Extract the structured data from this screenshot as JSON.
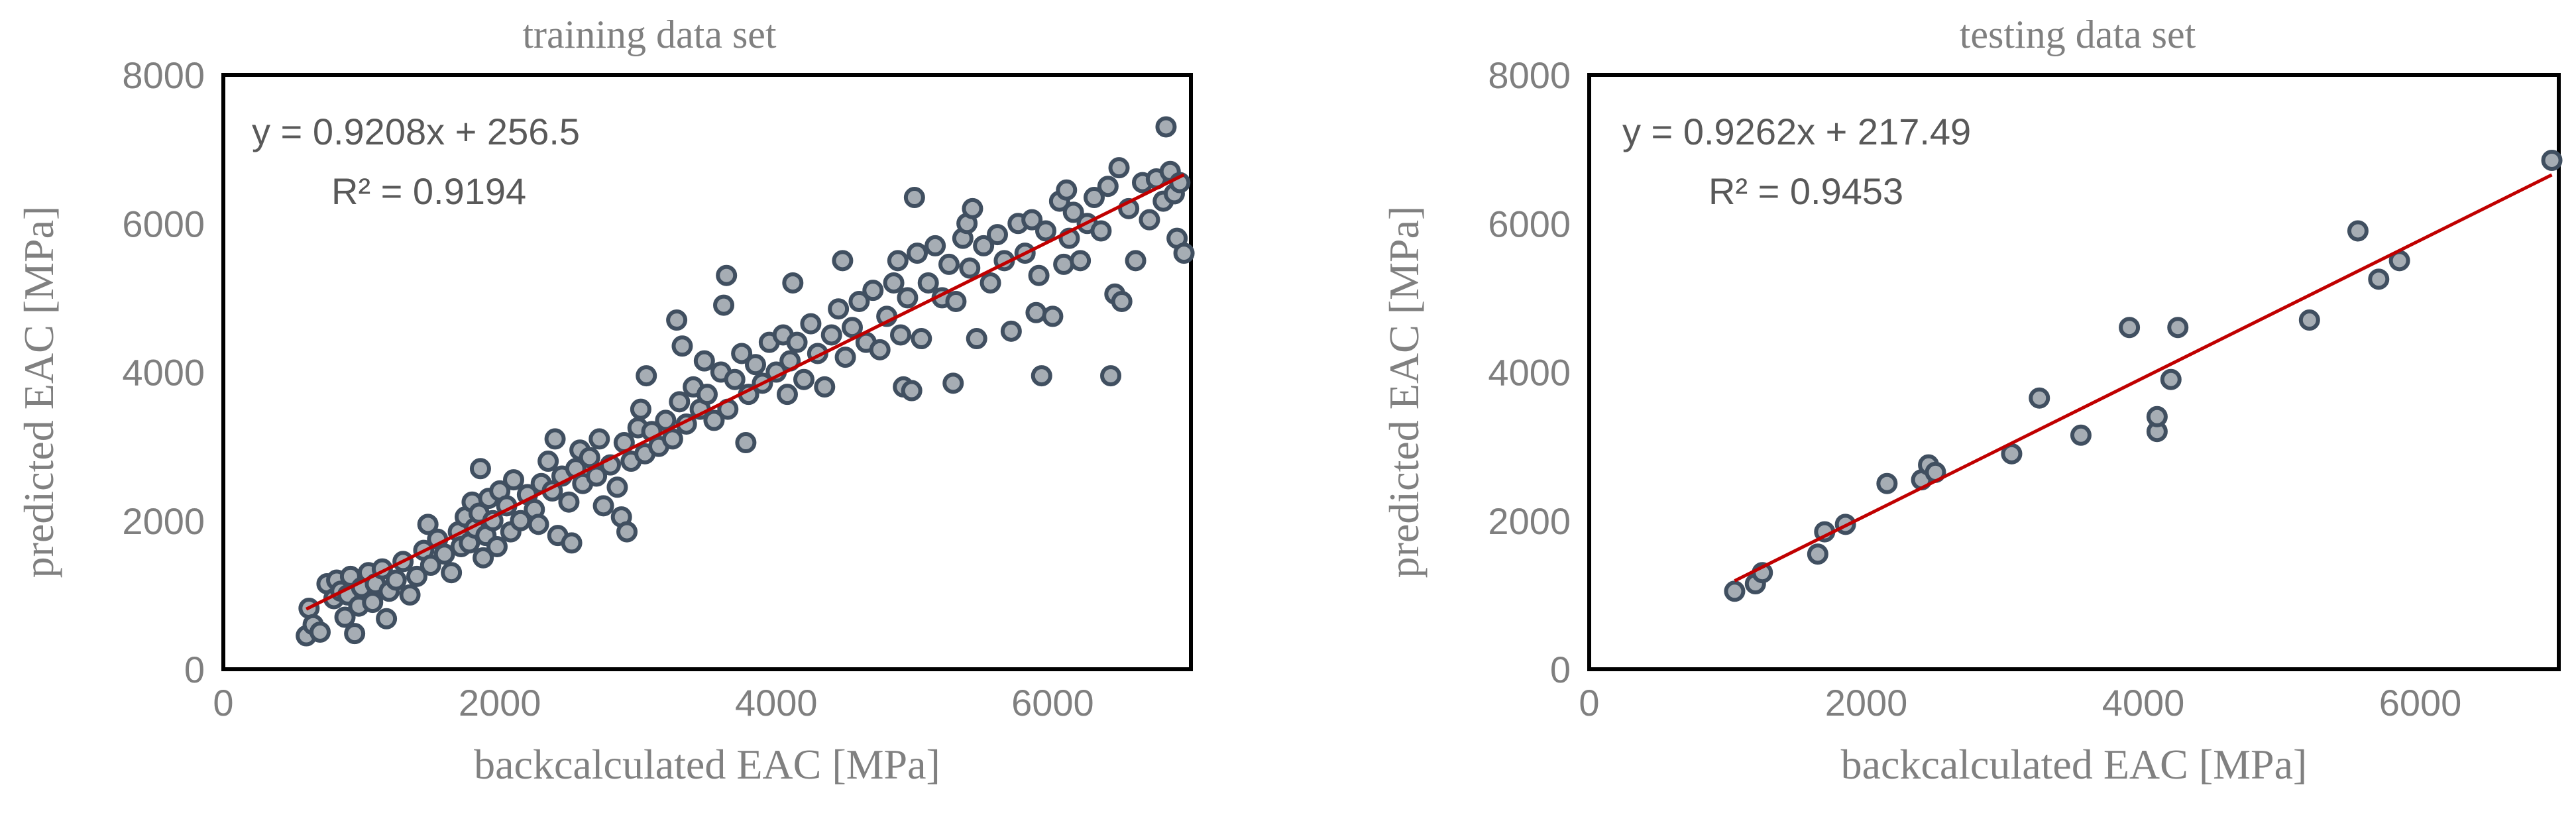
{
  "chart_data": [
    {
      "type": "scatter",
      "title": "training data set",
      "xlabel": "backcalculated EAC  [MPa]",
      "ylabel": "predicted EAC  [MPa]",
      "xlim": [
        0,
        7000
      ],
      "ylim": [
        0,
        8000
      ],
      "xticks": [
        "0",
        "2000",
        "4000",
        "6000"
      ],
      "yticks": [
        "0",
        "2000",
        "4000",
        "6000",
        "8000"
      ],
      "grid": false,
      "marker_color": "#404f60",
      "marker_fill": "#a6adb4",
      "trendline": {
        "slope": 0.9208,
        "intercept": 256.5,
        "x_range": [
          600,
          6950
        ],
        "color": "#c00000",
        "equation": "y = 0.9208x + 256.5",
        "r2": "R² = 0.9194"
      },
      "points": [
        [
          600,
          450
        ],
        [
          620,
          820
        ],
        [
          650,
          600
        ],
        [
          700,
          500
        ],
        [
          750,
          1150
        ],
        [
          800,
          950
        ],
        [
          820,
          1200
        ],
        [
          850,
          1050
        ],
        [
          880,
          700
        ],
        [
          900,
          1000
        ],
        [
          920,
          1250
        ],
        [
          950,
          480
        ],
        [
          980,
          850
        ],
        [
          1000,
          1100
        ],
        [
          1050,
          1300
        ],
        [
          1080,
          900
        ],
        [
          1100,
          1150
        ],
        [
          1150,
          1350
        ],
        [
          1180,
          680
        ],
        [
          1200,
          1050
        ],
        [
          1250,
          1200
        ],
        [
          1300,
          1450
        ],
        [
          1350,
          1000
        ],
        [
          1400,
          1250
        ],
        [
          1450,
          1600
        ],
        [
          1480,
          1950
        ],
        [
          1500,
          1400
        ],
        [
          1550,
          1750
        ],
        [
          1600,
          1550
        ],
        [
          1650,
          1300
        ],
        [
          1700,
          1850
        ],
        [
          1720,
          1650
        ],
        [
          1750,
          2050
        ],
        [
          1780,
          1700
        ],
        [
          1800,
          2250
        ],
        [
          1820,
          1900
        ],
        [
          1850,
          2100
        ],
        [
          1860,
          2700
        ],
        [
          1880,
          1500
        ],
        [
          1900,
          1800
        ],
        [
          1920,
          2300
        ],
        [
          1950,
          2000
        ],
        [
          1980,
          1650
        ],
        [
          2000,
          2400
        ],
        [
          2050,
          2200
        ],
        [
          2080,
          1850
        ],
        [
          2100,
          2550
        ],
        [
          2150,
          2000
        ],
        [
          2200,
          2350
        ],
        [
          2250,
          2150
        ],
        [
          2280,
          1950
        ],
        [
          2300,
          2500
        ],
        [
          2350,
          2800
        ],
        [
          2380,
          2400
        ],
        [
          2400,
          3100
        ],
        [
          2420,
          1800
        ],
        [
          2450,
          2600
        ],
        [
          2500,
          2250
        ],
        [
          2520,
          1700
        ],
        [
          2550,
          2700
        ],
        [
          2580,
          2950
        ],
        [
          2600,
          2500
        ],
        [
          2650,
          2850
        ],
        [
          2700,
          2600
        ],
        [
          2720,
          3100
        ],
        [
          2750,
          2200
        ],
        [
          2800,
          2750
        ],
        [
          2850,
          2450
        ],
        [
          2880,
          2050
        ],
        [
          2900,
          3050
        ],
        [
          2920,
          1850
        ],
        [
          2950,
          2800
        ],
        [
          3000,
          3250
        ],
        [
          3020,
          3500
        ],
        [
          3050,
          2900
        ],
        [
          3060,
          3950
        ],
        [
          3100,
          3200
        ],
        [
          3150,
          3000
        ],
        [
          3200,
          3350
        ],
        [
          3250,
          3100
        ],
        [
          3280,
          4700
        ],
        [
          3300,
          3600
        ],
        [
          3320,
          4350
        ],
        [
          3350,
          3300
        ],
        [
          3400,
          3800
        ],
        [
          3450,
          3500
        ],
        [
          3480,
          4150
        ],
        [
          3500,
          3700
        ],
        [
          3550,
          3350
        ],
        [
          3600,
          4000
        ],
        [
          3620,
          4900
        ],
        [
          3640,
          5300
        ],
        [
          3650,
          3500
        ],
        [
          3700,
          3900
        ],
        [
          3750,
          4250
        ],
        [
          3780,
          3050
        ],
        [
          3800,
          3700
        ],
        [
          3850,
          4100
        ],
        [
          3900,
          3850
        ],
        [
          3950,
          4400
        ],
        [
          4000,
          4000
        ],
        [
          4050,
          4500
        ],
        [
          4080,
          3700
        ],
        [
          4100,
          4150
        ],
        [
          4120,
          5200
        ],
        [
          4150,
          4400
        ],
        [
          4200,
          3900
        ],
        [
          4250,
          4650
        ],
        [
          4300,
          4250
        ],
        [
          4350,
          3800
        ],
        [
          4400,
          4500
        ],
        [
          4450,
          4850
        ],
        [
          4480,
          5500
        ],
        [
          4500,
          4200
        ],
        [
          4550,
          4600
        ],
        [
          4600,
          4950
        ],
        [
          4650,
          4400
        ],
        [
          4700,
          5100
        ],
        [
          4750,
          4300
        ],
        [
          4800,
          4750
        ],
        [
          4850,
          5200
        ],
        [
          4880,
          5500
        ],
        [
          4900,
          4500
        ],
        [
          4920,
          3800
        ],
        [
          4950,
          5000
        ],
        [
          4980,
          3750
        ],
        [
          5000,
          6350
        ],
        [
          5020,
          5600
        ],
        [
          5050,
          4450
        ],
        [
          5100,
          5200
        ],
        [
          5150,
          5700
        ],
        [
          5200,
          5000
        ],
        [
          5250,
          5450
        ],
        [
          5280,
          3850
        ],
        [
          5300,
          4950
        ],
        [
          5350,
          5800
        ],
        [
          5380,
          6000
        ],
        [
          5400,
          5400
        ],
        [
          5420,
          6200
        ],
        [
          5450,
          4450
        ],
        [
          5500,
          5700
        ],
        [
          5550,
          5200
        ],
        [
          5600,
          5850
        ],
        [
          5650,
          5500
        ],
        [
          5700,
          4550
        ],
        [
          5750,
          6000
        ],
        [
          5800,
          5600
        ],
        [
          5850,
          6050
        ],
        [
          5880,
          4800
        ],
        [
          5900,
          5300
        ],
        [
          5920,
          3950
        ],
        [
          5950,
          5900
        ],
        [
          6000,
          4750
        ],
        [
          6050,
          6300
        ],
        [
          6080,
          5450
        ],
        [
          6100,
          6450
        ],
        [
          6120,
          5800
        ],
        [
          6150,
          6150
        ],
        [
          6200,
          5500
        ],
        [
          6250,
          6000
        ],
        [
          6300,
          6350
        ],
        [
          6350,
          5900
        ],
        [
          6400,
          6500
        ],
        [
          6420,
          3950
        ],
        [
          6450,
          5050
        ],
        [
          6480,
          6750
        ],
        [
          6500,
          4950
        ],
        [
          6550,
          6200
        ],
        [
          6600,
          5500
        ],
        [
          6650,
          6550
        ],
        [
          6700,
          6050
        ],
        [
          6750,
          6600
        ],
        [
          6800,
          6300
        ],
        [
          6820,
          7300
        ],
        [
          6850,
          6700
        ],
        [
          6880,
          6400
        ],
        [
          6900,
          5800
        ],
        [
          6920,
          6550
        ],
        [
          6950,
          5600
        ]
      ]
    },
    {
      "type": "scatter",
      "title": "testing data set",
      "xlabel": "backcalculated EAC  [MPa]",
      "ylabel": "predicted EAC  [MPa]",
      "xlim": [
        0,
        7000
      ],
      "ylim": [
        0,
        8000
      ],
      "xticks": [
        "0",
        "2000",
        "4000",
        "6000"
      ],
      "yticks": [
        "0",
        "2000",
        "4000",
        "6000",
        "8000"
      ],
      "grid": false,
      "marker_color": "#404f60",
      "marker_fill": "#a6adb4",
      "trendline": {
        "slope": 0.9262,
        "intercept": 217.49,
        "x_range": [
          1050,
          6950
        ],
        "color": "#c00000",
        "equation": "y = 0.9262x + 217.49",
        "r2": "R² = 0.9453"
      },
      "points": [
        [
          1050,
          1050
        ],
        [
          1200,
          1150
        ],
        [
          1250,
          1300
        ],
        [
          1650,
          1550
        ],
        [
          1700,
          1850
        ],
        [
          1850,
          1950
        ],
        [
          2150,
          2500
        ],
        [
          2400,
          2550
        ],
        [
          2450,
          2750
        ],
        [
          2500,
          2650
        ],
        [
          3050,
          2900
        ],
        [
          3250,
          3650
        ],
        [
          3550,
          3150
        ],
        [
          3900,
          4600
        ],
        [
          4100,
          3200
        ],
        [
          4100,
          3400
        ],
        [
          4200,
          3900
        ],
        [
          4250,
          4600
        ],
        [
          5200,
          4700
        ],
        [
          5550,
          5900
        ],
        [
          5700,
          5250
        ],
        [
          5850,
          5500
        ],
        [
          6950,
          6850
        ]
      ]
    }
  ]
}
